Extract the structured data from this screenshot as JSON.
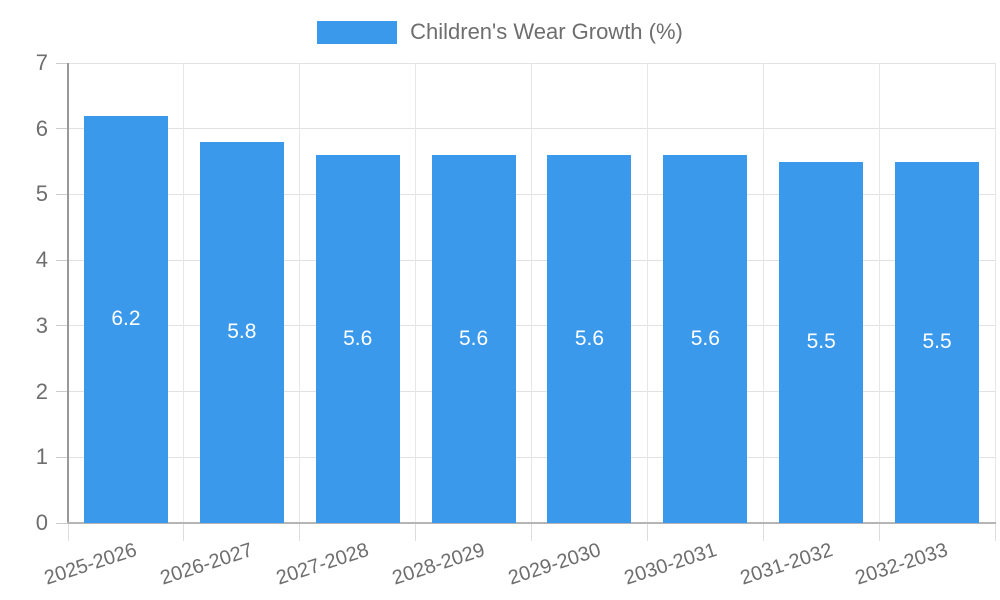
{
  "chart_data": {
    "type": "bar",
    "title": "",
    "xlabel": "",
    "ylabel": "",
    "legend": "Children's Wear Growth (%)",
    "legend_position": "top-center",
    "categories": [
      "2025-2026",
      "2026-2027",
      "2027-2028",
      "2028-2029",
      "2029-2030",
      "2030-2031",
      "2031-2032",
      "2032-2033"
    ],
    "values": [
      6.2,
      5.8,
      5.6,
      5.6,
      5.6,
      5.6,
      5.5,
      5.5
    ],
    "value_labels": [
      "6.2",
      "5.8",
      "5.6",
      "5.6",
      "5.6",
      "5.6",
      "5.5",
      "5.5"
    ],
    "ylim": [
      0,
      7
    ],
    "yticks": [
      0,
      1,
      2,
      3,
      4,
      5,
      6,
      7
    ],
    "grid": true,
    "colors": {
      "bar": "#3b99ec",
      "value_label": "#ffffff",
      "axis_text": "#6e6e6e",
      "grid_h": "#e2e2e2",
      "grid_v": "#e7e7e7",
      "y_axis_line": "#999999",
      "x_axis_line": "#b5b5b5",
      "y_tick": "#cccccc",
      "x_tick": "#dddddd"
    }
  }
}
